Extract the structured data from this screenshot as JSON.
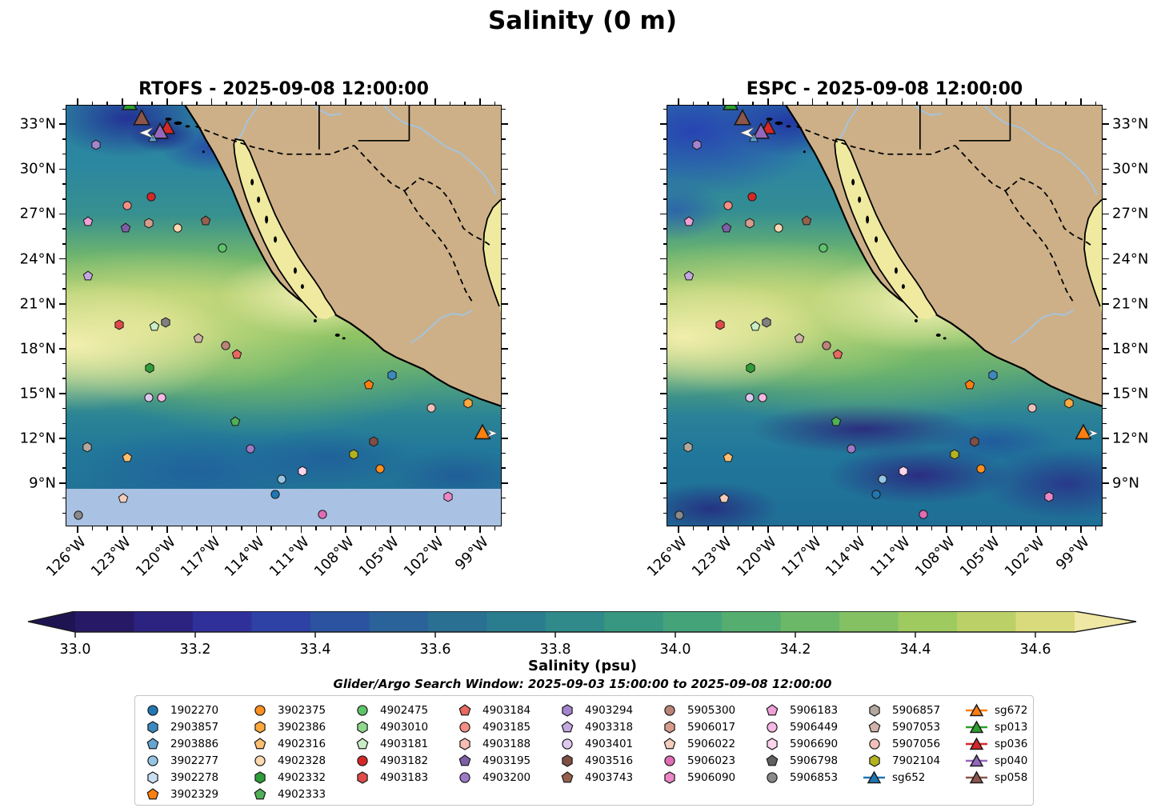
{
  "title": "Salinity (0 m)",
  "panels": [
    {
      "title": "RTOFS - 2025-09-08 12:00:00",
      "variant": "rtofs",
      "lat_label_side": "left"
    },
    {
      "title": "ESPC - 2025-09-08 12:00:00",
      "variant": "espc",
      "lat_label_side": "right"
    }
  ],
  "axes": {
    "lat_ticks": [
      "33°N",
      "30°N",
      "27°N",
      "24°N",
      "21°N",
      "18°N",
      "15°N",
      "12°N",
      "9°N"
    ],
    "lat_positions_pct": [
      4.6,
      15.25,
      25.9,
      36.55,
      47.2,
      57.85,
      68.5,
      79.1,
      89.75
    ],
    "lon_ticks": [
      "126°W",
      "123°W",
      "120°W",
      "117°W",
      "114°W",
      "111°W",
      "108°W",
      "105°W",
      "102°W",
      "99°W"
    ],
    "lon_positions_pct": [
      2.75,
      13.0,
      23.25,
      33.5,
      43.75,
      54.0,
      64.25,
      74.5,
      84.75,
      95.0
    ]
  },
  "colorbar": {
    "label": "Salinity (psu)",
    "ticks": [
      "33.0",
      "33.2",
      "33.4",
      "33.6",
      "33.8",
      "34.0",
      "34.2",
      "34.4",
      "34.6"
    ],
    "colors": [
      "#271965",
      "#2c2380",
      "#30309b",
      "#2e41a4",
      "#2b53a0",
      "#2a629a",
      "#297093",
      "#2a7d8e",
      "#2f8a89",
      "#389781",
      "#44a379",
      "#55ae70",
      "#6ab868",
      "#83c162",
      "#9eca60",
      "#bbd168",
      "#d9da7c"
    ],
    "arrow_left_color": "#1f1452",
    "arrow_right_color": "#efe8a4"
  },
  "legend": {
    "title": "Glider/Argo Search Window: 2025-09-03 15:00:00 to 2025-09-08 12:00:00",
    "columns": [
      [
        {
          "label": "1902270",
          "shape": "circle",
          "color": "#1f77b4"
        },
        {
          "label": "2903857",
          "shape": "hexagon",
          "color": "#3a8ac0"
        },
        {
          "label": "2903886",
          "shape": "pentagon",
          "color": "#64a5d1"
        },
        {
          "label": "3902277",
          "shape": "circle",
          "color": "#94c6e4"
        },
        {
          "label": "3902278",
          "shape": "hexagon",
          "color": "#c9e0f2"
        },
        {
          "label": "3902329",
          "shape": "pentagon",
          "color": "#ff7f0e"
        }
      ],
      [
        {
          "label": "3902375",
          "shape": "circle",
          "color": "#ff8f1f"
        },
        {
          "label": "3902386",
          "shape": "hexagon",
          "color": "#ffa83e"
        },
        {
          "label": "4902316",
          "shape": "pentagon",
          "color": "#ffbf71"
        },
        {
          "label": "4902328",
          "shape": "circle",
          "color": "#fcd9b0"
        },
        {
          "label": "4902332",
          "shape": "hexagon",
          "color": "#2e9e38"
        },
        {
          "label": "4902333",
          "shape": "pentagon",
          "color": "#4fb055"
        }
      ],
      [
        {
          "label": "4902475",
          "shape": "circle",
          "color": "#5ec46a"
        },
        {
          "label": "4903010",
          "shape": "hexagon",
          "color": "#8ed88f"
        },
        {
          "label": "4903181",
          "shape": "pentagon",
          "color": "#c8eec6"
        },
        {
          "label": "4903182",
          "shape": "circle",
          "color": "#d62728"
        },
        {
          "label": "4903183",
          "shape": "hexagon",
          "color": "#e04a49"
        }
      ],
      [
        {
          "label": "4903184",
          "shape": "pentagon",
          "color": "#e9685f"
        },
        {
          "label": "4903185",
          "shape": "circle",
          "color": "#f58e84"
        },
        {
          "label": "4903188",
          "shape": "hexagon",
          "color": "#f9bcb4"
        },
        {
          "label": "4903195",
          "shape": "pentagon",
          "color": "#7d5fa8"
        },
        {
          "label": "4903200",
          "shape": "circle",
          "color": "#9e79c8"
        }
      ],
      [
        {
          "label": "4903294",
          "shape": "hexagon",
          "color": "#a584cf"
        },
        {
          "label": "4903318",
          "shape": "pentagon",
          "color": "#c3a8e0"
        },
        {
          "label": "4903401",
          "shape": "circle",
          "color": "#ddc8ef"
        },
        {
          "label": "4903516",
          "shape": "hexagon",
          "color": "#7e4f44"
        },
        {
          "label": "4903743",
          "shape": "pentagon",
          "color": "#96604f"
        }
      ],
      [
        {
          "label": "5905300",
          "shape": "circle",
          "color": "#bb8478"
        },
        {
          "label": "5906017",
          "shape": "hexagon",
          "color": "#d69c8b"
        },
        {
          "label": "5906022",
          "shape": "pentagon",
          "color": "#f5cdbd"
        },
        {
          "label": "5906023",
          "shape": "circle",
          "color": "#e06cb4"
        },
        {
          "label": "5906090",
          "shape": "hexagon",
          "color": "#ec86c8"
        }
      ],
      [
        {
          "label": "5906183",
          "shape": "pentagon",
          "color": "#f0a0d8"
        },
        {
          "label": "5906449",
          "shape": "circle",
          "color": "#f6b8e4"
        },
        {
          "label": "5906690",
          "shape": "hexagon",
          "color": "#fbd4ee"
        },
        {
          "label": "5906798",
          "shape": "pentagon",
          "color": "#606060"
        },
        {
          "label": "5906853",
          "shape": "circle",
          "color": "#8a8a8a"
        }
      ],
      [
        {
          "label": "5906857",
          "shape": "hexagon",
          "color": "#b3a79e"
        },
        {
          "label": "5907053",
          "shape": "pentagon",
          "color": "#d1b2a8"
        },
        {
          "label": "5907056",
          "shape": "circle",
          "color": "#f2c0ba"
        },
        {
          "label": "7902104",
          "shape": "hexagon",
          "color": "#b3b31f"
        },
        {
          "label": "sg652",
          "shape": "glider",
          "color": "#1f77b4"
        }
      ],
      [
        {
          "label": "sg672",
          "shape": "glider",
          "color": "#ff7f0e"
        },
        {
          "label": "sp013",
          "shape": "glider",
          "color": "#2ca02c"
        },
        {
          "label": "sp036",
          "shape": "glider",
          "color": "#d62728"
        },
        {
          "label": "sp040",
          "shape": "glider",
          "color": "#9467bd"
        },
        {
          "label": "sp058",
          "shape": "glider",
          "color": "#8c564b"
        }
      ]
    ]
  },
  "map_markers": [
    {
      "s": "t",
      "c": "#2ca02c",
      "x": 14.5,
      "y": -0.6,
      "z": 20
    },
    {
      "s": "t",
      "c": "#8c564b",
      "x": 17.4,
      "y": 2.9,
      "z": 22
    },
    {
      "s": "t",
      "c": "#d62728",
      "x": 23.2,
      "y": 5.2,
      "z": 20
    },
    {
      "s": "t",
      "c": "#9467bd",
      "x": 21.5,
      "y": 6.0,
      "z": 22
    },
    {
      "s": "t",
      "c": "#5ba3d1",
      "x": 19.8,
      "y": 7.7,
      "z": 12
    },
    {
      "s": "al",
      "c": "#ffffff",
      "x": 18.4,
      "y": 6.9,
      "z": 20
    },
    {
      "s": "h",
      "c": "#a584cf",
      "x": 6.8,
      "y": 9.3
    },
    {
      "s": "c",
      "c": "#d62728",
      "x": 19.5,
      "y": 21.8
    },
    {
      "s": "c",
      "c": "#f58e84",
      "x": 14.0,
      "y": 23.9
    },
    {
      "s": "p",
      "c": "#f0a0d8",
      "x": 5.0,
      "y": 27.7
    },
    {
      "s": "p",
      "c": "#7d5fa8",
      "x": 13.7,
      "y": 29.1
    },
    {
      "s": "h",
      "c": "#d69c8b",
      "x": 18.9,
      "y": 28.0
    },
    {
      "s": "c",
      "c": "#fcd9b0",
      "x": 25.6,
      "y": 29.1
    },
    {
      "s": "p",
      "c": "#96604f",
      "x": 32.1,
      "y": 27.4
    },
    {
      "s": "c",
      "c": "#5ec46a",
      "x": 35.9,
      "y": 33.9
    },
    {
      "s": "p",
      "c": "#c3a8e0",
      "x": 4.9,
      "y": 40.5
    },
    {
      "s": "h",
      "c": "#e04a49",
      "x": 12.1,
      "y": 52.1
    },
    {
      "s": "p",
      "c": "#c8eec6",
      "x": 20.3,
      "y": 52.6
    },
    {
      "s": "h",
      "c": "#808080",
      "x": 22.8,
      "y": 51.7
    },
    {
      "s": "p",
      "c": "#d1b2a8",
      "x": 30.4,
      "y": 55.4
    },
    {
      "s": "c",
      "c": "#bb8478",
      "x": 36.6,
      "y": 57.2
    },
    {
      "s": "p",
      "c": "#e9685f",
      "x": 39.2,
      "y": 59.2
    },
    {
      "s": "h",
      "c": "#2e9e38",
      "x": 19.2,
      "y": 62.5
    },
    {
      "s": "c",
      "c": "#ddc8ef",
      "x": 18.9,
      "y": 69.6
    },
    {
      "s": "c",
      "c": "#f6b8e4",
      "x": 21.9,
      "y": 69.6
    },
    {
      "s": "h",
      "c": "#3a8ac0",
      "x": 75.0,
      "y": 64.1
    },
    {
      "s": "p",
      "c": "#ff7f0e",
      "x": 69.6,
      "y": 66.4
    },
    {
      "s": "h",
      "c": "#ffa83e",
      "x": 92.4,
      "y": 70.9
    },
    {
      "s": "c",
      "c": "#f2c0ba",
      "x": 84.0,
      "y": 72.0
    },
    {
      "s": "p",
      "c": "#4fb055",
      "x": 38.8,
      "y": 75.2
    },
    {
      "s": "t",
      "c": "#ff7f0e",
      "x": 95.7,
      "y": 77.8,
      "z": 21
    },
    {
      "s": "ar",
      "c": "#ffffff",
      "x": 97.9,
      "y": 78.3,
      "z": 14
    },
    {
      "s": "h",
      "c": "#7e4f44",
      "x": 70.7,
      "y": 80.0
    },
    {
      "s": "c",
      "c": "#9e79c8",
      "x": 42.3,
      "y": 81.7
    },
    {
      "s": "h",
      "c": "#b3a79e",
      "x": 4.8,
      "y": 81.3
    },
    {
      "s": "h",
      "c": "#b3b31f",
      "x": 66.2,
      "y": 83.0
    },
    {
      "s": "p",
      "c": "#ffbf71",
      "x": 14.0,
      "y": 83.8
    },
    {
      "s": "c",
      "c": "#ff8f1f",
      "x": 72.2,
      "y": 86.4
    },
    {
      "s": "h",
      "c": "#fbd4ee",
      "x": 54.4,
      "y": 87.0
    },
    {
      "s": "c",
      "c": "#94c6e4",
      "x": 49.6,
      "y": 88.9
    },
    {
      "s": "c",
      "c": "#1f77b4",
      "x": 48.0,
      "y": 92.5
    },
    {
      "s": "h",
      "c": "#ec86c8",
      "x": 87.8,
      "y": 93.1
    },
    {
      "s": "p",
      "c": "#f5cdbd",
      "x": 13.1,
      "y": 93.5
    },
    {
      "s": "c",
      "c": "#e06cb4",
      "x": 59.0,
      "y": 97.4
    },
    {
      "s": "c",
      "c": "#8a8a8a",
      "x": 2.8,
      "y": 97.6
    }
  ],
  "map_style": {
    "land_color": "#cdb088",
    "gulf_water_color": "#f0eaa0",
    "river_color": "#9fc6e8",
    "nodata_color": "#a9c2e3"
  }
}
